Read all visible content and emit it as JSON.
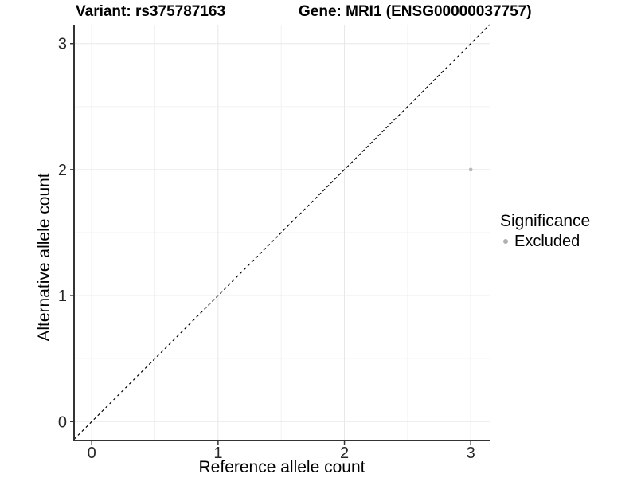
{
  "chart_data": {
    "type": "scatter",
    "titles": [
      "Variant: rs375787163",
      "Gene: MRI1 (ENSG00000037757)"
    ],
    "xlabel": "Reference allele count",
    "ylabel": "Alternative allele count",
    "xlim": [
      -0.14,
      3.15
    ],
    "ylim": [
      -0.15,
      3.15
    ],
    "xticks": [
      0,
      1,
      2,
      3
    ],
    "yticks": [
      0,
      1,
      2,
      3
    ],
    "xticks_minor": [
      0.5,
      1.5,
      2.5
    ],
    "yticks_minor": [
      0.5,
      1.5,
      2.5
    ],
    "grid": "major and minor gridlines on, white panel background",
    "reference_line": {
      "kind": "identity y=x",
      "style": "dashed",
      "color": "#000000"
    },
    "series": [
      {
        "name": "Excluded",
        "color": "#b9b9b9",
        "points": [
          {
            "x": 3,
            "y": 2
          }
        ]
      }
    ],
    "legend": {
      "title": "Significance",
      "position": "right",
      "entries": [
        {
          "label": "Excluded",
          "color": "#b0b0b0"
        }
      ]
    }
  },
  "colors": {
    "background": "#ffffff",
    "axis_line": "#333333",
    "grid_major": "#e8e8e8",
    "grid_minor": "#f2f2f2",
    "tick_label": "#262626",
    "point": "#b9b9b9",
    "reference_line": "#000000"
  }
}
